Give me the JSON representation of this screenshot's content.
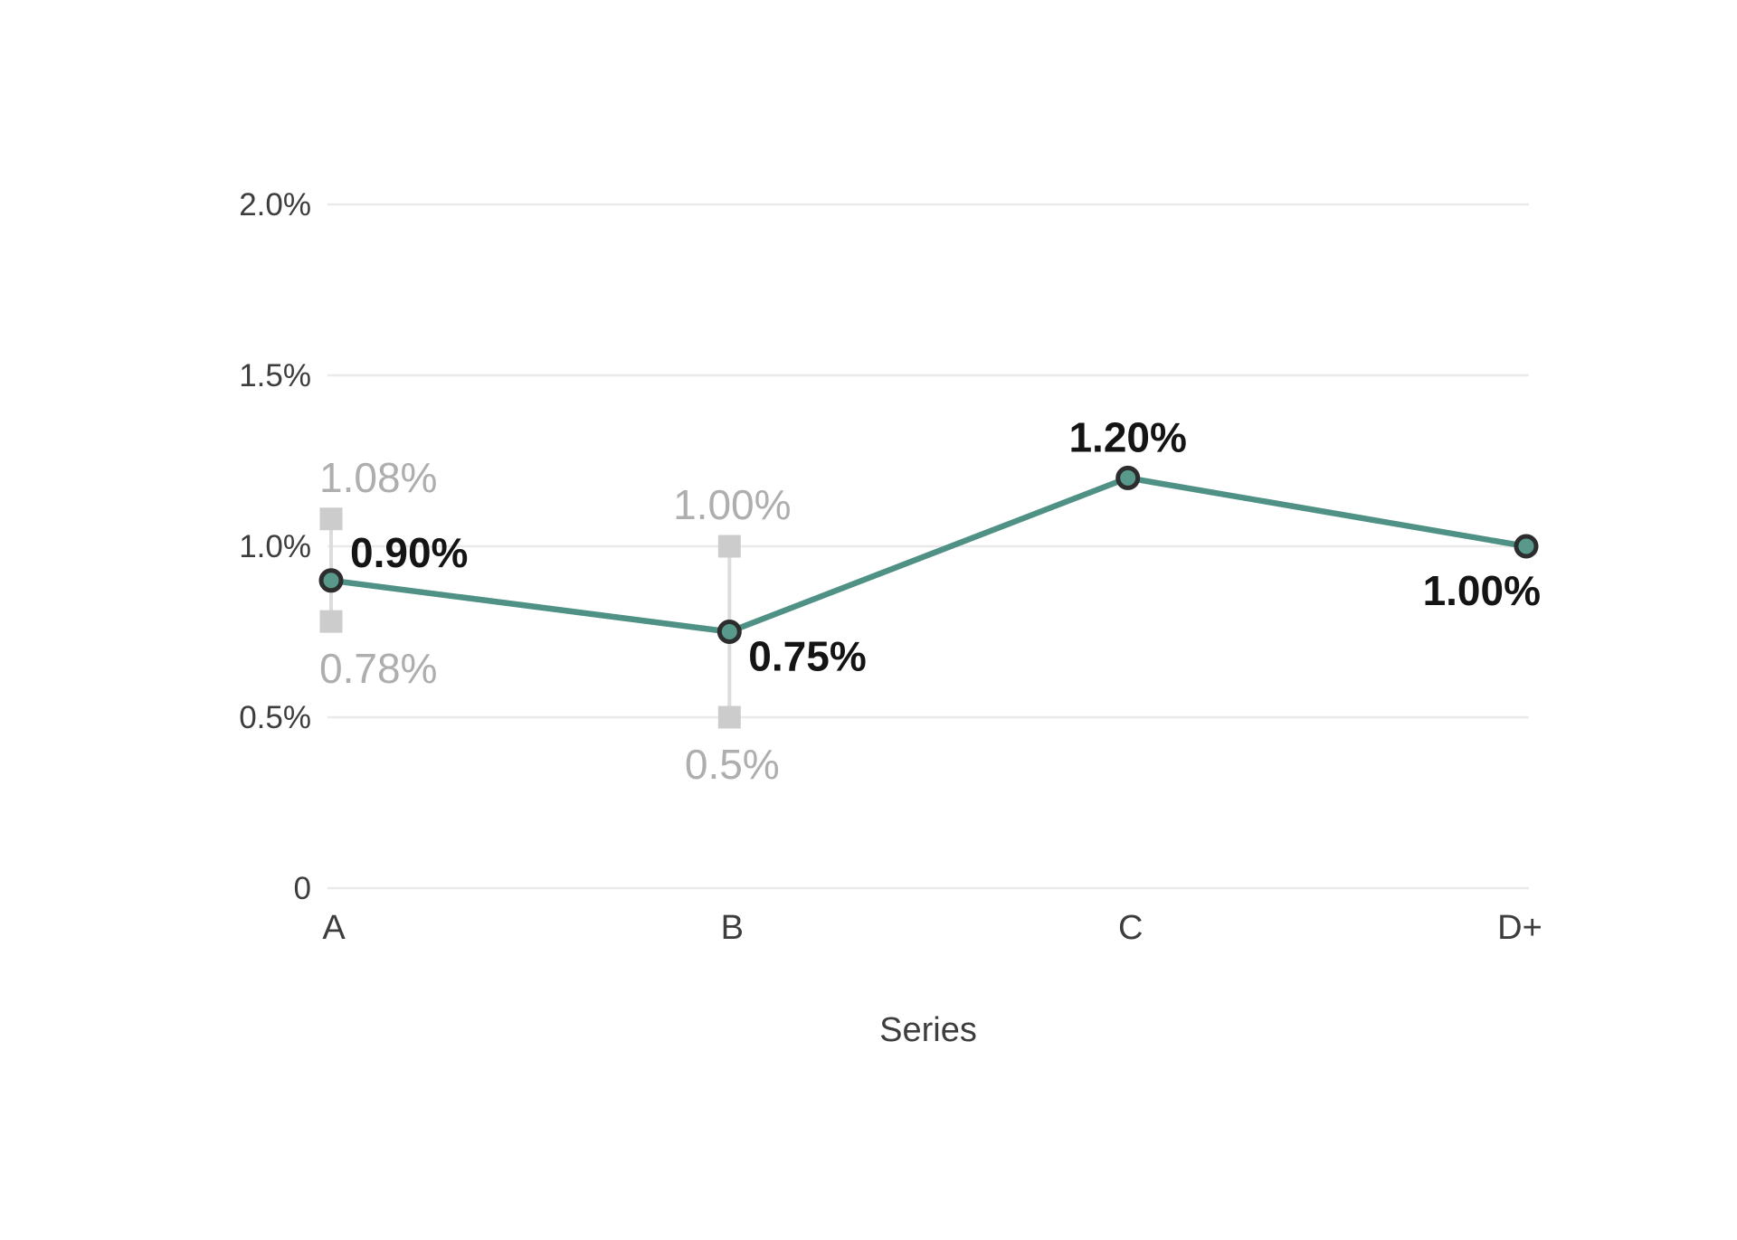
{
  "chart_data": {
    "type": "line",
    "title": "",
    "xlabel": "Series",
    "ylabel": "",
    "categories": [
      "A",
      "B",
      "C",
      "D+"
    ],
    "series": [
      {
        "name": "Series",
        "values": [
          0.9,
          0.75,
          1.2,
          1.0
        ]
      }
    ],
    "point_labels": [
      "0.90%",
      "0.75%",
      "1.20%",
      "1.00%"
    ],
    "point_label_placements": [
      "top-right",
      "bottom-right",
      "top",
      "bottom-left"
    ],
    "error_bars": [
      {
        "category": "A",
        "high": 1.08,
        "low": 0.78,
        "high_label": "1.08%",
        "low_label": "0.78%",
        "label_align": "start"
      },
      {
        "category": "B",
        "high": 1.0,
        "low": 0.5,
        "high_label": "1.00%",
        "low_label": "0.5%",
        "label_align": "middle"
      }
    ],
    "y_ticks": [
      {
        "value": 0,
        "label": "0"
      },
      {
        "value": 0.5,
        "label": "0.5%"
      },
      {
        "value": 1.0,
        "label": "1.0%"
      },
      {
        "value": 1.5,
        "label": "1.5%"
      },
      {
        "value": 2.0,
        "label": "2.0%"
      }
    ],
    "ylim": [
      0,
      2.0
    ],
    "grid": true,
    "legend": "none",
    "colors": {
      "line": "#4f9185",
      "point_fill": "#58998b",
      "point_stroke": "#2d2d2d",
      "grid": "#eaeaea",
      "error_marker": "#cccccc",
      "error_line": "#dcdcdc",
      "value_label": "#141414",
      "error_label": "#aeaeae",
      "axis_label": "#3d3d3d"
    }
  }
}
